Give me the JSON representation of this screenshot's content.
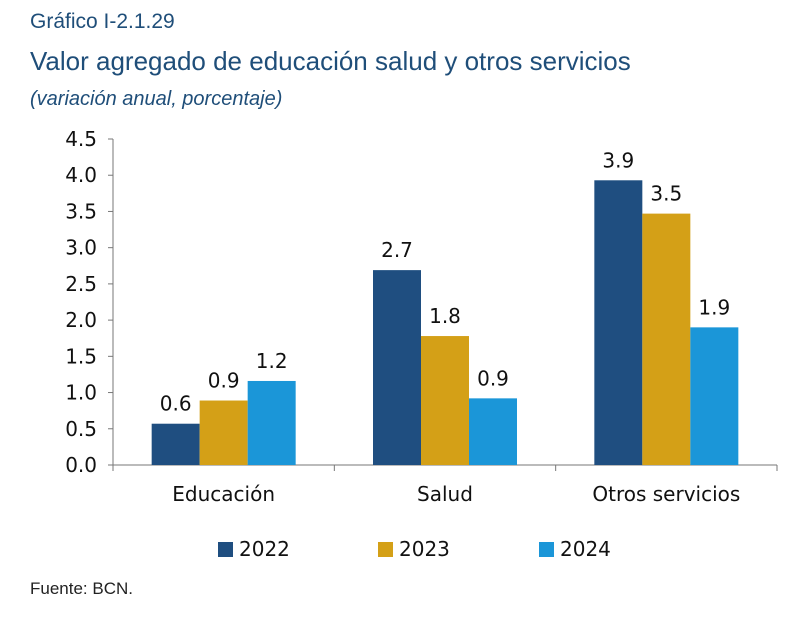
{
  "header": {
    "kicker": "Gráfico I-2.1.29",
    "title": "Valor agregado de educación salud y otros servicios",
    "subtitle": "(variación anual, porcentaje)"
  },
  "source": "Fuente: BCN.",
  "colors": {
    "title": "#1f4e79",
    "s2022": "#1f4e80",
    "s2023": "#d4a017",
    "s2024": "#1b96d8",
    "axis": "#777777"
  },
  "chart_data": {
    "type": "bar",
    "categories": [
      "Educación",
      "Salud",
      "Otros servicios"
    ],
    "series": [
      {
        "name": "2022",
        "values": [
          0.6,
          2.7,
          3.9
        ]
      },
      {
        "name": "2023",
        "values": [
          0.9,
          1.8,
          3.5
        ]
      },
      {
        "name": "2024",
        "values": [
          1.2,
          0.9,
          1.9
        ]
      }
    ],
    "data_labels": [
      [
        "0.6",
        "2.7",
        "3.9"
      ],
      [
        "0.9",
        "1.8",
        "3.5"
      ],
      [
        "1.2",
        "0.9",
        "1.9"
      ]
    ],
    "actual_values": [
      [
        0.57,
        2.69,
        3.93
      ],
      [
        0.89,
        1.78,
        3.47
      ],
      [
        1.16,
        0.92,
        1.9
      ]
    ],
    "ylim": [
      0,
      4.5
    ],
    "yticks": [
      "0.0",
      "0.5",
      "1.0",
      "1.5",
      "2.0",
      "2.5",
      "3.0",
      "3.5",
      "4.0",
      "4.5"
    ],
    "xlabel": "",
    "ylabel": "",
    "legend_position": "bottom",
    "grid": false
  }
}
